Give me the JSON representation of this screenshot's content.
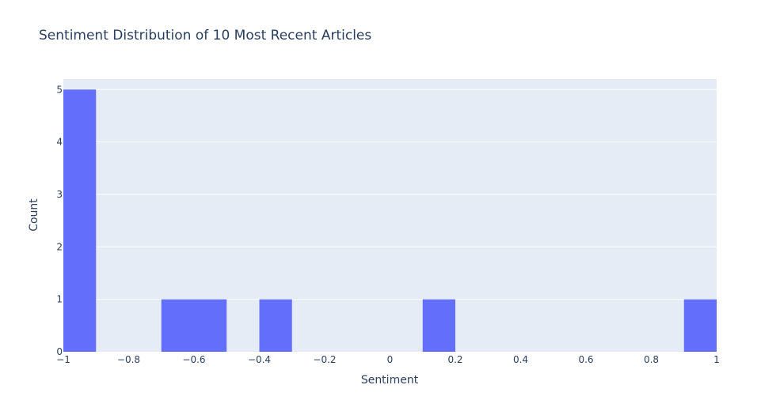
{
  "chart_data": {
    "type": "bar",
    "title": "Sentiment Distribution of 10 Most Recent Articles",
    "xlabel": "Sentiment",
    "ylabel": "Count",
    "xlim": [
      -1,
      1
    ],
    "ylim": [
      0,
      5.2
    ],
    "x_ticks": [
      -1,
      -0.8,
      -0.6,
      -0.4,
      -0.2,
      0,
      0.2,
      0.4,
      0.6,
      0.8,
      1
    ],
    "x_tick_labels": [
      "−1",
      "−0.8",
      "−0.6",
      "−0.4",
      "−0.2",
      "0",
      "0.2",
      "0.4",
      "0.6",
      "0.8",
      "1"
    ],
    "y_ticks": [
      0,
      1,
      2,
      3,
      4,
      5
    ],
    "y_tick_labels": [
      "0",
      "1",
      "2",
      "3",
      "4",
      "5"
    ],
    "bins": [
      {
        "x0": -1.0,
        "x1": -0.9,
        "count": 5
      },
      {
        "x0": -0.7,
        "x1": -0.6,
        "count": 1
      },
      {
        "x0": -0.6,
        "x1": -0.5,
        "count": 1
      },
      {
        "x0": -0.4,
        "x1": -0.3,
        "count": 1
      },
      {
        "x0": 0.1,
        "x1": 0.2,
        "count": 1
      },
      {
        "x0": 0.9,
        "x1": 1.0,
        "count": 1
      }
    ],
    "colors": {
      "bar": "#636efa",
      "plot_background": "#e5ecf6",
      "grid": "#ffffff",
      "text": "#2a3f5f"
    },
    "grid": true
  }
}
